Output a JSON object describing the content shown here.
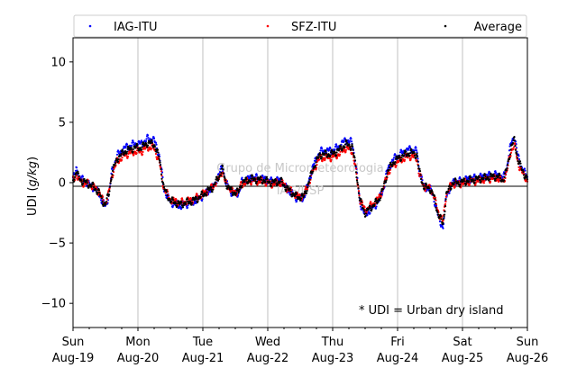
{
  "chart_data": {
    "type": "scatter",
    "title": "",
    "xlabel": "",
    "ylabel": "UDI (g/kg)",
    "ylabel_prefix": "UDI (",
    "ylabel_unit": "g/kg",
    "ylabel_suffix": ")",
    "ylim": [
      -12,
      12
    ],
    "xlim": [
      0,
      7
    ],
    "grid": "vertical",
    "legend_position": "top",
    "y_ticks": [
      -10,
      -5,
      0,
      5,
      10
    ],
    "x_ticks": [
      {
        "day": 0,
        "weekday": "Sun",
        "date": "Aug-19"
      },
      {
        "day": 1,
        "weekday": "Mon",
        "date": "Aug-20"
      },
      {
        "day": 2,
        "weekday": "Tue",
        "date": "Aug-21"
      },
      {
        "day": 3,
        "weekday": "Wed",
        "date": "Aug-22"
      },
      {
        "day": 4,
        "weekday": "Thu",
        "date": "Aug-23"
      },
      {
        "day": 5,
        "weekday": "Fri",
        "date": "Aug-24"
      },
      {
        "day": 6,
        "weekday": "Sat",
        "date": "Aug-25"
      },
      {
        "day": 7,
        "weekday": "Sun",
        "date": "Aug-26"
      }
    ],
    "series": [
      {
        "name": "IAG-ITU",
        "color": "#0000ff",
        "offset": 0.15
      },
      {
        "name": "SFZ-ITU",
        "color": "#ff0000",
        "offset": -0.2
      },
      {
        "name": "Average",
        "color": "#000000",
        "offset": 0
      }
    ],
    "average_profile": [
      [
        0.0,
        0.3
      ],
      [
        0.03,
        0.5
      ],
      [
        0.05,
        1.0
      ],
      [
        0.08,
        0.5
      ],
      [
        0.12,
        0.2
      ],
      [
        0.2,
        0.0
      ],
      [
        0.3,
        -0.3
      ],
      [
        0.4,
        -0.8
      ],
      [
        0.45,
        -1.5
      ],
      [
        0.5,
        -1.8
      ],
      [
        0.55,
        -1.0
      ],
      [
        0.6,
        0.8
      ],
      [
        0.68,
        2.0
      ],
      [
        0.8,
        2.6
      ],
      [
        0.95,
        2.9
      ],
      [
        1.05,
        2.9
      ],
      [
        1.15,
        3.3
      ],
      [
        1.25,
        3.2
      ],
      [
        1.33,
        2.0
      ],
      [
        1.4,
        -0.5
      ],
      [
        1.5,
        -1.5
      ],
      [
        1.65,
        -1.8
      ],
      [
        1.85,
        -1.5
      ],
      [
        1.95,
        -1.2
      ],
      [
        2.05,
        -0.8
      ],
      [
        2.15,
        -0.4
      ],
      [
        2.25,
        0.5
      ],
      [
        2.3,
        1.2
      ],
      [
        2.35,
        0.0
      ],
      [
        2.45,
        -0.8
      ],
      [
        2.55,
        -0.8
      ],
      [
        2.6,
        0.0
      ],
      [
        2.75,
        0.3
      ],
      [
        2.95,
        0.2
      ],
      [
        3.05,
        0.0
      ],
      [
        3.2,
        0.1
      ],
      [
        3.3,
        -0.5
      ],
      [
        3.45,
        -1.2
      ],
      [
        3.55,
        -1.2
      ],
      [
        3.62,
        -0.2
      ],
      [
        3.7,
        1.2
      ],
      [
        3.8,
        2.3
      ],
      [
        4.0,
        2.4
      ],
      [
        4.1,
        2.7
      ],
      [
        4.2,
        3.2
      ],
      [
        4.3,
        3.0
      ],
      [
        4.35,
        1.5
      ],
      [
        4.42,
        -1.5
      ],
      [
        4.5,
        -2.5
      ],
      [
        4.6,
        -2.0
      ],
      [
        4.7,
        -1.5
      ],
      [
        4.78,
        -0.5
      ],
      [
        4.85,
        1.0
      ],
      [
        4.95,
        1.8
      ],
      [
        5.1,
        2.3
      ],
      [
        5.2,
        2.5
      ],
      [
        5.3,
        2.3
      ],
      [
        5.33,
        1.0
      ],
      [
        5.4,
        -0.3
      ],
      [
        5.5,
        -0.5
      ],
      [
        5.55,
        -1.0
      ],
      [
        5.62,
        -2.5
      ],
      [
        5.7,
        -3.5
      ],
      [
        5.75,
        -1.0
      ],
      [
        5.85,
        0.0
      ],
      [
        5.95,
        0.0
      ],
      [
        6.1,
        0.2
      ],
      [
        6.25,
        0.3
      ],
      [
        6.35,
        0.4
      ],
      [
        6.45,
        0.5
      ],
      [
        6.55,
        0.5
      ],
      [
        6.62,
        0.2
      ],
      [
        6.68,
        1.0
      ],
      [
        6.75,
        3.0
      ],
      [
        6.8,
        3.5
      ],
      [
        6.85,
        2.0
      ],
      [
        6.92,
        1.0
      ],
      [
        7.0,
        0.3
      ]
    ]
  },
  "watermark": {
    "line1": "Grupo de Micrometeorologia",
    "line2": "IAG/USP"
  },
  "annotation": "* UDI = Urban dry island"
}
